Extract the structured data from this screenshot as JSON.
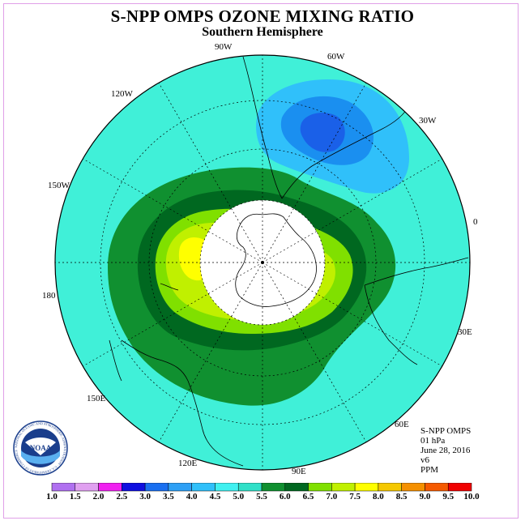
{
  "title": "S-NPP OMPS OZONE MIXING RATIO",
  "subtitle": "Southern Hemisphere",
  "longitude_labels": {
    "lon_90w": "90W",
    "lon_60w": "60W",
    "lon_120w": "120W",
    "lon_30w": "30W",
    "lon_150w": "150W",
    "lon_0": "0",
    "lon_180": "180",
    "lon_30e": "30E",
    "lon_150e": "150E",
    "lon_60e": "60E",
    "lon_120e": "120E",
    "lon_90e": "90E"
  },
  "info": {
    "instrument": "S-NPP OMPS",
    "level": "01 hPa",
    "date": "June 28, 2016",
    "version": "v6",
    "units": "PPM"
  },
  "logo": {
    "text": "NOAA",
    "ring_text": "NATIONAL OCEANIC AND ATMOSPHERIC ADMINISTRATION · U.S. DEPARTMENT OF COMMERCE"
  },
  "colorbar": {
    "ticks": [
      "1.0",
      "1.5",
      "2.0",
      "2.5",
      "3.0",
      "3.5",
      "4.0",
      "4.5",
      "5.0",
      "5.5",
      "6.0",
      "6.5",
      "7.0",
      "7.5",
      "8.0",
      "8.5",
      "9.0",
      "9.5",
      "10.0"
    ],
    "colors": [
      "#b070f0",
      "#e0a0f0",
      "#f020f0",
      "#1010e0",
      "#1a6ff0",
      "#2ea0f5",
      "#30c0fa",
      "#40f0f0",
      "#30e0c8",
      "#109030",
      "#006820",
      "#80e000",
      "#c0f000",
      "#ffff00",
      "#f5c800",
      "#f59000",
      "#f55a00",
      "#f00000",
      "#805030"
    ]
  },
  "map_colors": {
    "ocean_base": "#40f0d8",
    "blue_light": "#30c0fa",
    "blue_mid": "#1a8ff0",
    "blue_dark": "#1a60e8",
    "green_outer": "#109030",
    "green_dark": "#006820",
    "lime": "#80e000",
    "yellow_green": "#c0f000",
    "yellow": "#ffff00"
  }
}
